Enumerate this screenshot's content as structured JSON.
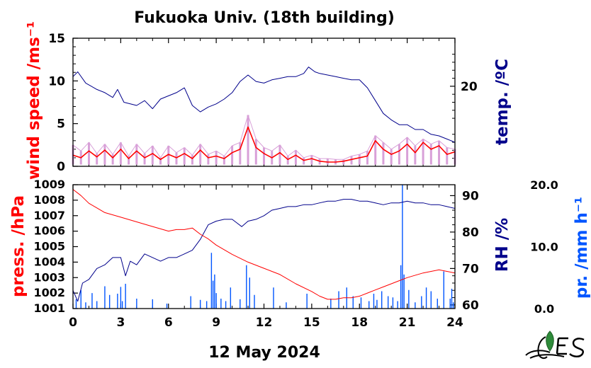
{
  "title": "Fukuoka Univ. (18th building)",
  "date_label": "12 May 2024",
  "colors": {
    "wind": "#ff0000",
    "wind_raw": "#d8a0d8",
    "temp": "#00008b",
    "press": "#ff0000",
    "rh": "#00008b",
    "precip": "#0055ff"
  },
  "logo_icon": "fukuoka-univ-logo-icon",
  "x_ticks": [
    "0",
    "3",
    "6",
    "9",
    "12",
    "15",
    "18",
    "21",
    "24"
  ],
  "top_panel": {
    "left_ticks": [
      "15",
      "10",
      "5",
      "0"
    ],
    "left_label": "wind speed /ms⁻¹",
    "right_ticks": [
      "20"
    ],
    "right_label": "temp. /ºC"
  },
  "bottom_panel": {
    "left_ticks": [
      "1009",
      "1008",
      "1007",
      "1006",
      "1005",
      "1004",
      "1003",
      "1002",
      "1001"
    ],
    "left_label": "press. /hPa",
    "right_ticks": [
      "90",
      "80",
      "70",
      "60"
    ],
    "right_label": "RH /%",
    "far_ticks": [
      "20.0",
      "10.0",
      "0.0"
    ],
    "far_label": "pr. /mm h⁻¹"
  },
  "chart_data": [
    {
      "type": "line",
      "panel": "top",
      "xlim": [
        0,
        24
      ],
      "y_left_lim": [
        0,
        15
      ],
      "y_right_lim": [
        10,
        26
      ],
      "series": [
        {
          "axis": "left",
          "kind": "raw",
          "x": [
            0,
            0.5,
            1,
            1.5,
            2,
            2.5,
            3,
            3.5,
            4,
            4.5,
            5,
            5.5,
            6,
            6.5,
            7,
            7.5,
            8,
            8.5,
            9,
            9.5,
            10,
            10.5,
            11,
            11.5,
            12,
            12.5,
            13,
            13.5,
            14,
            14.5,
            15,
            15.5,
            16,
            16.5,
            17,
            17.5,
            18,
            18.5,
            19,
            19.5,
            20,
            20.5,
            21,
            21.5,
            22,
            22.5,
            23,
            23.5,
            24
          ],
          "values": [
            2.5,
            1.8,
            2.8,
            1.5,
            2.6,
            1.4,
            2.8,
            1.2,
            2.6,
            1.5,
            2.4,
            1.0,
            2.4,
            1.6,
            2.2,
            1.3,
            2.6,
            1.4,
            1.8,
            1.2,
            2.4,
            2.8,
            6.0,
            3.2,
            2.2,
            1.8,
            2.5,
            1.2,
            1.9,
            1.0,
            1.3,
            0.9,
            0.9,
            0.8,
            0.8,
            1.2,
            1.4,
            1.8,
            3.6,
            2.8,
            2.0,
            2.6,
            3.4,
            2.4,
            3.2,
            2.6,
            3.0,
            2.2,
            2.0
          ]
        },
        {
          "axis": "left",
          "kind": "mean",
          "x": [
            0,
            0.5,
            1,
            1.5,
            2,
            2.5,
            3,
            3.5,
            4,
            4.5,
            5,
            5.5,
            6,
            6.5,
            7,
            7.5,
            8,
            8.5,
            9,
            9.5,
            10,
            10.5,
            11,
            11.5,
            12,
            12.5,
            13,
            13.5,
            14,
            14.5,
            15,
            15.5,
            16,
            16.5,
            17,
            17.5,
            18,
            18.5,
            19,
            19.5,
            20,
            20.5,
            21,
            21.5,
            22,
            22.5,
            23,
            23.5,
            24
          ],
          "values": [
            1.3,
            1.0,
            1.8,
            1.1,
            1.9,
            1.0,
            2.0,
            0.9,
            1.8,
            1.0,
            1.5,
            0.8,
            1.4,
            1.0,
            1.5,
            0.9,
            1.9,
            1.0,
            1.2,
            0.9,
            1.6,
            2.0,
            4.6,
            2.2,
            1.5,
            1.0,
            1.6,
            0.8,
            1.3,
            0.7,
            0.9,
            0.6,
            0.5,
            0.5,
            0.6,
            0.8,
            1.0,
            1.2,
            3.0,
            2.0,
            1.4,
            1.8,
            2.6,
            1.6,
            2.8,
            2.0,
            2.4,
            1.4,
            1.7
          ]
        },
        {
          "axis": "right",
          "kind": "temperature",
          "x": [
            0,
            0.3,
            0.8,
            1.5,
            2,
            2.5,
            2.8,
            3.2,
            4,
            4.5,
            5,
            5.5,
            6,
            6.5,
            7,
            7.5,
            8,
            8.5,
            9,
            9.5,
            10,
            10.5,
            11,
            11.5,
            12,
            12.5,
            13,
            13.5,
            14,
            14.5,
            14.8,
            15.2,
            15.5,
            16,
            16.5,
            17,
            17.5,
            18,
            18.5,
            19,
            19.5,
            20,
            20.5,
            21,
            21.5,
            22,
            22.5,
            23,
            23.5,
            24
          ],
          "values": [
            21.2,
            21.8,
            20.4,
            19.6,
            19.2,
            18.6,
            19.6,
            18.0,
            17.6,
            18.2,
            17.2,
            18.4,
            18.8,
            19.2,
            19.8,
            17.6,
            16.8,
            17.4,
            17.8,
            18.4,
            19.2,
            20.6,
            21.4,
            20.6,
            20.4,
            20.8,
            21.0,
            21.2,
            21.2,
            21.6,
            22.4,
            21.8,
            21.6,
            21.4,
            21.2,
            21.0,
            20.8,
            20.8,
            19.8,
            18.2,
            16.6,
            15.8,
            15.2,
            15.2,
            14.6,
            14.6,
            14.0,
            13.8,
            13.4,
            13.0
          ]
        }
      ]
    },
    {
      "type": "line",
      "panel": "bottom",
      "xlim": [
        0,
        24
      ],
      "y_left_lim": [
        1001,
        1009
      ],
      "y_right_lim": [
        59,
        93
      ],
      "series": [
        {
          "axis": "left",
          "kind": "pressure",
          "x": [
            0,
            0.5,
            1,
            1.5,
            2,
            3,
            4,
            5,
            6,
            6.5,
            7,
            7.5,
            8,
            8.5,
            9,
            10,
            11,
            12,
            13,
            14,
            15,
            15.5,
            16,
            16.5,
            17,
            17.5,
            18,
            18.5,
            19,
            19.5,
            20,
            20.5,
            21,
            22,
            22.5,
            23,
            23.5,
            24
          ],
          "values": [
            1008.7,
            1008.3,
            1007.8,
            1007.5,
            1007.2,
            1006.9,
            1006.6,
            1006.3,
            1006.0,
            1006.1,
            1006.1,
            1006.2,
            1005.8,
            1005.5,
            1005.1,
            1004.5,
            1004.0,
            1003.6,
            1003.2,
            1002.6,
            1002.1,
            1001.8,
            1001.6,
            1001.6,
            1001.7,
            1001.7,
            1001.8,
            1002.0,
            1002.2,
            1002.4,
            1002.6,
            1002.8,
            1003.0,
            1003.3,
            1003.4,
            1003.5,
            1003.4,
            1003.3
          ]
        },
        {
          "axis": "right",
          "kind": "relative-humidity",
          "x": [
            0,
            0.3,
            0.6,
            1,
            1.5,
            2,
            2.5,
            3,
            3.3,
            3.6,
            4,
            4.5,
            5,
            5.5,
            6,
            6.5,
            7,
            7.5,
            8,
            8.5,
            9,
            9.5,
            10,
            10.3,
            10.6,
            11,
            11.5,
            12,
            12.5,
            13,
            13.5,
            14,
            14.5,
            15,
            15.5,
            16,
            16.5,
            17,
            17.5,
            18,
            18.5,
            19,
            19.5,
            20,
            20.5,
            21,
            21.5,
            22,
            22.5,
            23,
            23.5,
            24
          ],
          "values": [
            64,
            61,
            66,
            67,
            70,
            71,
            73,
            73,
            68,
            72,
            71,
            74,
            73,
            72,
            73,
            73,
            74,
            75,
            78,
            82,
            83,
            83.5,
            83.5,
            82.5,
            81.5,
            83,
            83.5,
            84.5,
            86,
            86.5,
            87,
            87,
            87.5,
            87.5,
            88,
            88.5,
            88.5,
            89,
            89,
            88.5,
            88.5,
            88,
            87.5,
            88,
            88,
            88.5,
            88,
            88,
            87.5,
            87.5,
            87,
            86.5
          ]
        },
        {
          "axis": "far",
          "kind": "precipitation",
          "type": "bar",
          "x": [
            0.2,
            0.5,
            0.8,
            1.2,
            1.5,
            2.0,
            2.3,
            2.8,
            3.0,
            3.1,
            3.3,
            4.0,
            5.0,
            5.9,
            7.4,
            8.0,
            8.4,
            8.7,
            8.8,
            8.9,
            9.0,
            9.3,
            9.6,
            9.9,
            10.5,
            10.9,
            11.1,
            11.4,
            12.6,
            13.4,
            14.7,
            16.2,
            16.7,
            17.2,
            17.6,
            18.1,
            18.6,
            18.9,
            19.1,
            19.4,
            19.8,
            20.1,
            20.4,
            20.6,
            20.7,
            20.8,
            21.1,
            21.5,
            21.9,
            22.2,
            22.5,
            22.9,
            23.3,
            23.7,
            23.8,
            23.9
          ],
          "values": [
            1.5,
            3.0,
            1.0,
            2.5,
            1.2,
            3.6,
            2.2,
            2.4,
            3.5,
            1.2,
            4.0,
            1.6,
            1.5,
            0.8,
            2.0,
            1.4,
            1.2,
            9.0,
            4.5,
            5.5,
            2.5,
            1.6,
            1.2,
            3.4,
            1.5,
            7.0,
            5.0,
            2.2,
            3.4,
            1.0,
            2.4,
            1.6,
            2.8,
            3.4,
            2.0,
            1.8,
            1.2,
            2.4,
            1.4,
            2.8,
            2.0,
            1.8,
            1.2,
            7.0,
            20.0,
            5.5,
            3.0,
            1.0,
            2.0,
            3.4,
            2.8,
            1.6,
            6.0,
            1.6,
            3.2,
            1.0
          ]
        }
      ]
    }
  ]
}
